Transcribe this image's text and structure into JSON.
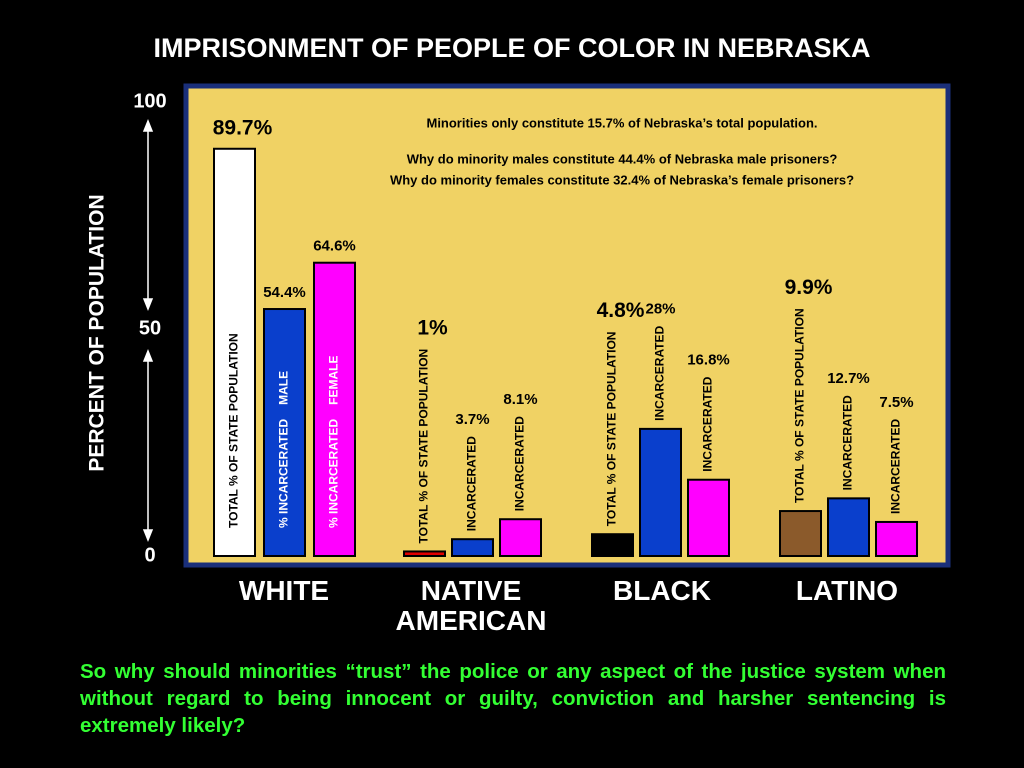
{
  "chart_data": {
    "type": "bar",
    "title": "IMPRISONMENT OF PEOPLE OF COLOR IN NEBRASKA",
    "ylabel": "PERCENT OF POPULATION",
    "ylim": [
      0,
      100
    ],
    "yticks": [
      0,
      50,
      100
    ],
    "categories": [
      "WHITE",
      "NATIVE AMERICAN",
      "BLACK",
      "LATINO"
    ],
    "annotations": [
      "Minorities only constitute 15.7% of Nebraska’s total population.",
      "Why do minority males constitute 44.4% of Nebraska male prisoners?",
      "Why do minority females constitute 32.4% of Nebraska’s female prisoners?"
    ],
    "series": [
      {
        "colors": [
          "#ffffff",
          "#e00000",
          "#000000",
          "#8b5a2b"
        ],
        "values": [
          89.7,
          1,
          4.8,
          9.9
        ],
        "value_labels": [
          "89.7%",
          "1%",
          "4.8%",
          "9.9%"
        ],
        "bar_labels": [
          "TOTAL % OF STATE POPULATION",
          "TOTAL % OF STATE POPULATION",
          "TOTAL % OF STATE POPULATION",
          "TOTAL % OF STATE POPULATION"
        ]
      },
      {
        "color": "#0a3fcc",
        "values": [
          54.4,
          3.7,
          28,
          12.7
        ],
        "value_labels": [
          "54.4%",
          "3.7%",
          "28%",
          "12.7%"
        ],
        "bar_labels": [
          "% INCARCERATED",
          "INCARCERATED",
          "INCARCERATED",
          "INCARCERATED"
        ],
        "bar_sublabels": [
          "MALE",
          null,
          null,
          null
        ]
      },
      {
        "color": "#ff00ff",
        "values": [
          64.6,
          8.1,
          16.8,
          7.5
        ],
        "value_labels": [
          "64.6%",
          "8.1%",
          "16.8%",
          "7.5%"
        ],
        "bar_labels": [
          "% INCARCERATED",
          "INCARCERATED",
          "INCARCERATED",
          "INCARCERATED"
        ],
        "bar_sublabels": [
          "FEMALE",
          null,
          null,
          null
        ]
      }
    ]
  },
  "footer": "So why should minorities “trust” the police or any aspect of the justice system when without regard to being innocent or guilty, conviction and harsher sentencing is extremely likely?"
}
